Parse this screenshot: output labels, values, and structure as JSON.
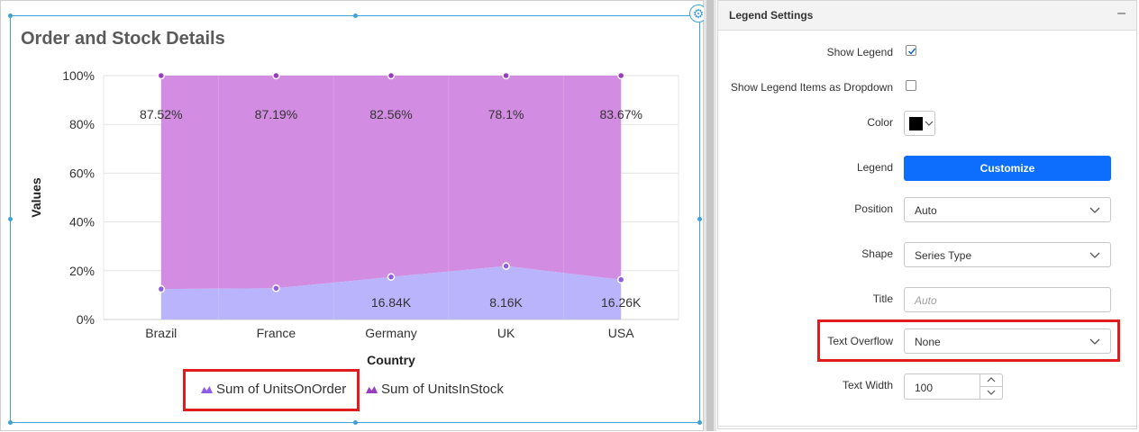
{
  "widget": {
    "title": "Order and Stock Details",
    "settings_icon": "gear-icon"
  },
  "chart_data": {
    "type": "area",
    "stacking": "100%",
    "categories": [
      "Brazil",
      "France",
      "Germany",
      "UK",
      "USA"
    ],
    "xlabel": "Country",
    "ylabel": "Values",
    "y_ticks": [
      "0%",
      "20%",
      "40%",
      "60%",
      "80%",
      "100%"
    ],
    "ylim": [
      0,
      100
    ],
    "grid": true,
    "legend_position": "bottom",
    "series": [
      {
        "name": "Sum of UnitsOnOrder",
        "percent": [
          12.48,
          12.81,
          17.44,
          21.9,
          16.33
        ],
        "data_labels": [
          "",
          "",
          "16.84K",
          "8.16K",
          "16.26K"
        ],
        "color": "#b9b4fb",
        "marker_color": "#8e5ce6"
      },
      {
        "name": "Sum of UnitsInStock",
        "percent": [
          87.52,
          87.19,
          82.56,
          78.1,
          83.67
        ],
        "data_labels": [
          "87.52%",
          "87.19%",
          "82.56%",
          "78.1%",
          "83.67%"
        ],
        "color": "#d28ce1",
        "marker_color": "#9b3cc0"
      }
    ]
  },
  "panel": {
    "title": "Legend Settings",
    "collapse_icon": "minus-icon",
    "show_legend_label": "Show Legend",
    "show_legend_checked": true,
    "dropdown_items_label": "Show Legend Items as Dropdown",
    "dropdown_items_checked": false,
    "color_label": "Color",
    "color_value": "#000000",
    "legend_label": "Legend",
    "customize_label": "Customize",
    "position_label": "Position",
    "position_value": "Auto",
    "shape_label": "Shape",
    "shape_value": "Series Type",
    "title_label": "Title",
    "title_placeholder": "Auto",
    "text_overflow_label": "Text Overflow",
    "text_overflow_value": "None",
    "text_width_label": "Text Width",
    "text_width_value": "100"
  }
}
